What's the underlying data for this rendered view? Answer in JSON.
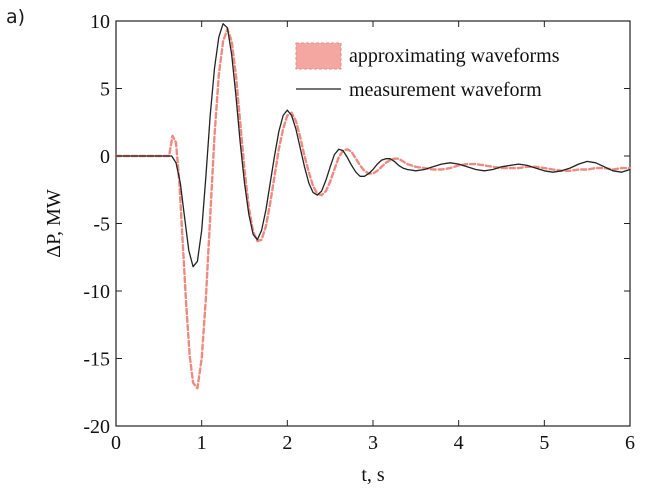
{
  "panel_label": "a)",
  "chart_data": {
    "type": "line",
    "title": "",
    "xlabel": "t, s",
    "ylabel": "ΔP, MW",
    "xlim": [
      0,
      6
    ],
    "ylim": [
      -20,
      10
    ],
    "xticks": [
      "0",
      "1",
      "2",
      "3",
      "4",
      "5",
      "6"
    ],
    "yticks": [
      "10",
      "5",
      "0",
      "-5",
      "-10",
      "-15",
      "-20"
    ],
    "grid": false,
    "legend_position": "top-right",
    "legend": [
      "approximating waveforms",
      "measurement waveform"
    ],
    "colors": {
      "approximating": "#f08a80",
      "approximating_fill": "#f4a6a0",
      "measurement": "#222222"
    },
    "series": [
      {
        "name": "approximating waveforms",
        "style": "dashed",
        "x": [
          0,
          0.62,
          0.66,
          0.7,
          0.74,
          0.78,
          0.82,
          0.86,
          0.9,
          0.95,
          1.0,
          1.05,
          1.1,
          1.15,
          1.2,
          1.25,
          1.3,
          1.35,
          1.4,
          1.45,
          1.5,
          1.55,
          1.6,
          1.65,
          1.7,
          1.75,
          1.8,
          1.85,
          1.9,
          1.95,
          2.0,
          2.05,
          2.1,
          2.15,
          2.2,
          2.25,
          2.3,
          2.35,
          2.4,
          2.45,
          2.5,
          2.55,
          2.6,
          2.65,
          2.7,
          2.75,
          2.8,
          2.85,
          2.9,
          2.95,
          3.0,
          3.05,
          3.1,
          3.15,
          3.2,
          3.25,
          3.3,
          3.35,
          3.4,
          3.5,
          3.6,
          3.7,
          3.8,
          3.9,
          4.0,
          4.1,
          4.2,
          4.3,
          4.4,
          4.5,
          4.6,
          4.7,
          4.8,
          4.9,
          5.0,
          5.1,
          5.2,
          5.3,
          5.4,
          5.5,
          5.6,
          5.7,
          5.8,
          5.9,
          6.0
        ],
        "y": [
          0,
          0,
          1.5,
          1.0,
          -2.0,
          -6.5,
          -11.0,
          -14.8,
          -16.8,
          -17.2,
          -15.0,
          -10.5,
          -4.5,
          1.5,
          6.0,
          8.5,
          9.4,
          8.5,
          6.0,
          2.5,
          -1.0,
          -3.8,
          -5.6,
          -6.3,
          -6.2,
          -5.2,
          -3.5,
          -1.5,
          0.5,
          2.0,
          3.0,
          3.2,
          2.6,
          1.4,
          0,
          -1.2,
          -2.2,
          -2.8,
          -2.9,
          -2.6,
          -1.9,
          -1.0,
          -0.1,
          0.4,
          0.5,
          0.3,
          -0.2,
          -0.7,
          -1.1,
          -1.3,
          -1.3,
          -1.1,
          -0.8,
          -0.5,
          -0.3,
          -0.2,
          -0.2,
          -0.4,
          -0.6,
          -0.8,
          -0.9,
          -1.0,
          -1.0,
          -0.9,
          -0.7,
          -0.6,
          -0.6,
          -0.7,
          -0.8,
          -0.9,
          -0.9,
          -0.9,
          -0.8,
          -0.8,
          -0.9,
          -1.0,
          -1.1,
          -1.1,
          -1.0,
          -1.0,
          -0.9,
          -0.9,
          -1.0,
          -0.9,
          -0.9
        ]
      },
      {
        "name": "measurement waveform",
        "style": "solid",
        "x": [
          0,
          0.65,
          0.7,
          0.75,
          0.8,
          0.85,
          0.9,
          0.95,
          1.0,
          1.05,
          1.1,
          1.15,
          1.2,
          1.25,
          1.3,
          1.35,
          1.4,
          1.45,
          1.5,
          1.55,
          1.6,
          1.65,
          1.7,
          1.75,
          1.8,
          1.85,
          1.9,
          1.95,
          2.0,
          2.05,
          2.1,
          2.15,
          2.2,
          2.25,
          2.3,
          2.35,
          2.4,
          2.45,
          2.5,
          2.55,
          2.6,
          2.65,
          2.7,
          2.75,
          2.8,
          2.85,
          2.9,
          2.95,
          3.0,
          3.05,
          3.1,
          3.15,
          3.2,
          3.25,
          3.3,
          3.35,
          3.4,
          3.5,
          3.6,
          3.7,
          3.8,
          3.9,
          4.0,
          4.1,
          4.2,
          4.3,
          4.4,
          4.5,
          4.6,
          4.7,
          4.8,
          4.9,
          5.0,
          5.1,
          5.2,
          5.3,
          5.4,
          5.5,
          5.6,
          5.7,
          5.8,
          5.9,
          6.0
        ],
        "y": [
          0,
          0,
          -0.5,
          -2.0,
          -4.5,
          -7.0,
          -8.2,
          -7.8,
          -5.5,
          -1.5,
          3.0,
          6.5,
          8.8,
          9.8,
          9.5,
          7.5,
          4.5,
          1.0,
          -2.0,
          -4.3,
          -5.8,
          -6.2,
          -5.5,
          -4.0,
          -2.0,
          0,
          1.8,
          3.0,
          3.4,
          3.0,
          2.0,
          0.6,
          -0.8,
          -2.0,
          -2.7,
          -2.9,
          -2.6,
          -1.8,
          -0.8,
          0.1,
          0.5,
          0.4,
          -0.1,
          -0.7,
          -1.2,
          -1.5,
          -1.5,
          -1.3,
          -1.0,
          -0.6,
          -0.3,
          -0.2,
          -0.2,
          -0.4,
          -0.7,
          -0.9,
          -1.0,
          -1.1,
          -1.0,
          -0.8,
          -0.6,
          -0.5,
          -0.6,
          -0.8,
          -1.0,
          -1.1,
          -1.0,
          -0.8,
          -0.7,
          -0.6,
          -0.7,
          -0.9,
          -1.1,
          -1.2,
          -1.1,
          -0.9,
          -0.6,
          -0.4,
          -0.5,
          -0.8,
          -1.1,
          -1.2,
          -1.0
        ]
      }
    ]
  }
}
